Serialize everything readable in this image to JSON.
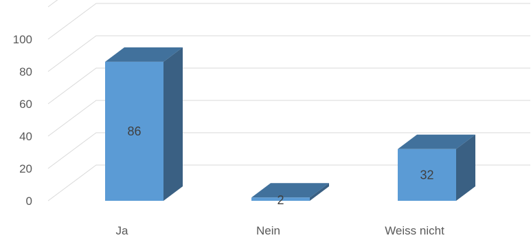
{
  "chart_data": {
    "type": "bar",
    "style": "3d-column",
    "categories": [
      "Ja",
      "Nein",
      "Weiss nicht"
    ],
    "values": [
      86,
      2,
      32
    ],
    "data_labels": [
      "86",
      "2",
      "32"
    ],
    "ylim": [
      0,
      120
    ],
    "yticks": [
      "0",
      "20",
      "40",
      "60",
      "80",
      "100"
    ],
    "grid": true,
    "legend": "none",
    "colors": {
      "front": "#5b9bd5",
      "top": "#41719c",
      "side": "#3a6083",
      "grid": "#d9d9d9",
      "text": "#595959"
    }
  }
}
